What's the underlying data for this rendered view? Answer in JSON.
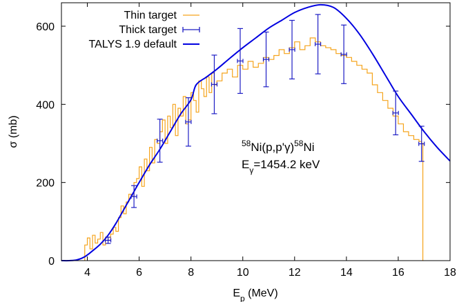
{
  "chart_data": {
    "type": "line",
    "xlabel": "E",
    "xlabel_sub": "p",
    "xlabel_unit": " (MeV)",
    "ylabel": "σ (mb)",
    "xlim": [
      3,
      18
    ],
    "ylim": [
      0,
      660
    ],
    "x_ticks": [
      4,
      6,
      8,
      10,
      12,
      14,
      16,
      18
    ],
    "y_ticks": [
      0,
      200,
      400,
      600
    ],
    "legend_position": "top-left",
    "annotation": {
      "line1": {
        "sup1": "58",
        "text1": "Ni(p,p'γ)",
        "sup2": "58",
        "text2": "Ni"
      },
      "line2": {
        "text": "E",
        "sub": "γ",
        "rest": "=1454.2 keV"
      }
    },
    "colors": {
      "thin": "#f5a31a",
      "thick": "#1c1cc4",
      "talys": "#0000e0"
    },
    "series": [
      {
        "name": "Thin target",
        "style": "step",
        "x": [
          3.9,
          4.0,
          4.1,
          4.2,
          4.3,
          4.4,
          4.5,
          4.6,
          4.7,
          4.8,
          4.9,
          5.0,
          5.1,
          5.2,
          5.3,
          5.4,
          5.5,
          5.6,
          5.7,
          5.8,
          5.9,
          6.0,
          6.1,
          6.2,
          6.3,
          6.4,
          6.5,
          6.6,
          6.7,
          6.8,
          6.9,
          7.0,
          7.1,
          7.2,
          7.3,
          7.4,
          7.5,
          7.6,
          7.7,
          7.8,
          7.9,
          8.0,
          8.1,
          8.2,
          8.3,
          8.4,
          8.5,
          8.6,
          8.7,
          8.8,
          8.9,
          9.0,
          9.2,
          9.4,
          9.6,
          9.8,
          10.0,
          10.2,
          10.4,
          10.6,
          10.8,
          11.0,
          11.2,
          11.4,
          11.6,
          11.8,
          12.0,
          12.2,
          12.4,
          12.6,
          12.8,
          13.0,
          13.2,
          13.4,
          13.6,
          13.8,
          14.0,
          14.2,
          14.4,
          14.6,
          14.8,
          15.0,
          15.2,
          15.4,
          15.6,
          15.8,
          16.0,
          16.2,
          16.4,
          16.6,
          16.8,
          16.9,
          16.95
        ],
        "values": [
          40,
          58,
          30,
          65,
          45,
          55,
          72,
          40,
          60,
          52,
          68,
          85,
          75,
          110,
          140,
          120,
          150,
          170,
          165,
          200,
          210,
          240,
          190,
          260,
          230,
          290,
          250,
          310,
          300,
          330,
          360,
          300,
          370,
          340,
          400,
          320,
          390,
          370,
          420,
          350,
          360,
          430,
          410,
          380,
          460,
          440,
          420,
          470,
          430,
          480,
          450,
          460,
          480,
          490,
          470,
          500,
          490,
          510,
          495,
          505,
          520,
          515,
          525,
          540,
          530,
          545,
          560,
          540,
          550,
          570,
          560,
          550,
          545,
          540,
          530,
          525,
          520,
          510,
          500,
          490,
          480,
          450,
          430,
          410,
          390,
          370,
          350,
          330,
          320,
          310,
          305,
          300,
          0
        ]
      },
      {
        "name": "Thick target",
        "style": "errorbar",
        "x": [
          4.8,
          5.8,
          6.8,
          7.9,
          8.9,
          9.9,
          10.9,
          11.9,
          12.9,
          13.9,
          15.9,
          16.9
        ],
        "values": [
          52,
          164,
          307,
          355,
          451,
          511,
          515,
          540,
          554,
          528,
          378,
          299
        ],
        "errors": [
          8,
          28,
          55,
          62,
          75,
          83,
          70,
          75,
          76,
          75,
          56,
          45
        ]
      },
      {
        "name": "TALYS 1.9 default",
        "style": "line",
        "x": [
          3.0,
          3.3,
          3.6,
          3.9,
          4.2,
          4.5,
          4.8,
          5.1,
          5.4,
          5.7,
          6.0,
          6.4,
          6.8,
          7.2,
          7.6,
          8.0,
          8.2,
          8.6,
          9.0,
          9.5,
          10.0,
          10.5,
          11.0,
          11.5,
          12.0,
          12.5,
          13.0,
          13.5,
          14.0,
          14.5,
          15.0,
          15.5,
          16.0,
          16.5,
          17.0,
          17.5,
          18.0
        ],
        "values": [
          0,
          0,
          2,
          10,
          25,
          42,
          65,
          95,
          130,
          165,
          200,
          245,
          285,
          330,
          375,
          412,
          450,
          470,
          490,
          518,
          545,
          570,
          595,
          615,
          635,
          648,
          655,
          648,
          620,
          580,
          530,
          475,
          420,
          375,
          330,
          290,
          255
        ]
      }
    ]
  }
}
